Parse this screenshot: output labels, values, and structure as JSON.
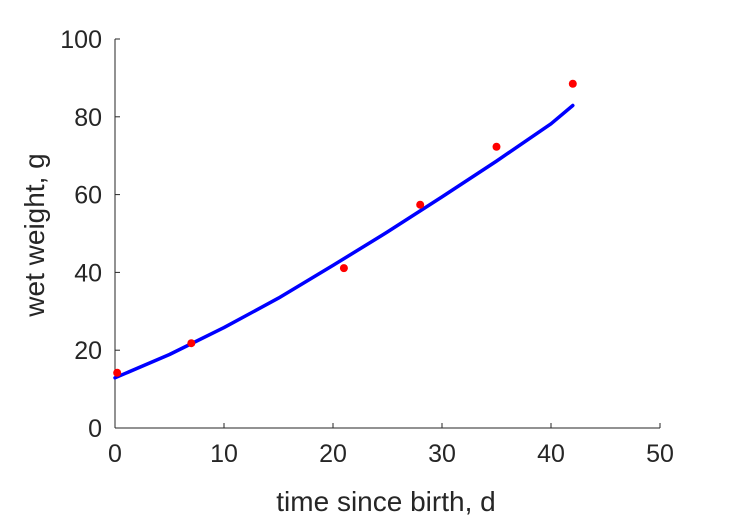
{
  "chart_data": {
    "type": "scatter",
    "title": "",
    "xlabel": "time since birth, d",
    "ylabel": "wet weight, g",
    "xlim": [
      0,
      50
    ],
    "ylim": [
      0,
      100
    ],
    "xticks": [
      "0",
      "10",
      "20",
      "30",
      "40",
      "50"
    ],
    "yticks": [
      "0",
      "20",
      "40",
      "60",
      "80",
      "100"
    ],
    "grid": false,
    "legend": "none",
    "series": [
      {
        "kind": "markers",
        "color": "#ff0000",
        "x": [
          0.2,
          7,
          21,
          28,
          35,
          42
        ],
        "y": [
          14.2,
          21.8,
          41.1,
          57.4,
          72.3,
          88.5
        ]
      },
      {
        "kind": "line",
        "color": "#0000ff",
        "x": [
          0,
          5,
          10,
          15,
          20,
          25,
          30,
          35,
          40,
          42
        ],
        "y": [
          12.9,
          18.9,
          25.8,
          33.4,
          41.8,
          50.4,
          59.4,
          68.6,
          78.2,
          82.9
        ]
      }
    ]
  }
}
